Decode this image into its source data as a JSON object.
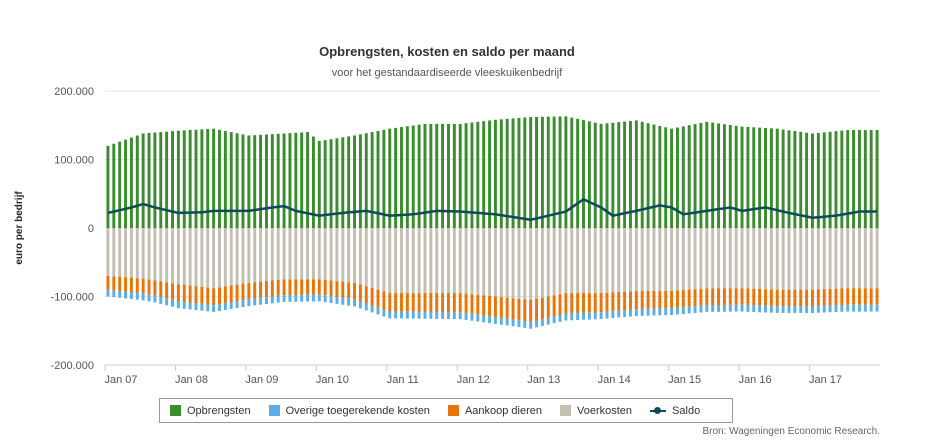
{
  "chart_data": {
    "type": "bar",
    "title": "Opbrengsten, kosten en saldo per maand",
    "subtitle": "voor het gestandaardiseerde vleeskuikenbedrijf",
    "ylabel": "euro per bedrijf",
    "ylim": [
      -200000,
      200000
    ],
    "yticks": [
      {
        "value": 200000,
        "label": "200.000"
      },
      {
        "value": 100000,
        "label": "100.000"
      },
      {
        "value": 0,
        "label": "0"
      },
      {
        "value": -100000,
        "label": "-100.000"
      },
      {
        "value": -200000,
        "label": "-200.000"
      }
    ],
    "xticks": [
      {
        "index": 0,
        "label": "Jan 07"
      },
      {
        "index": 12,
        "label": "Jan 08"
      },
      {
        "index": 24,
        "label": "Jan 09"
      },
      {
        "index": 36,
        "label": "Jan 10"
      },
      {
        "index": 48,
        "label": "Jan 11"
      },
      {
        "index": 60,
        "label": "Jan 12"
      },
      {
        "index": 72,
        "label": "Jan 13"
      },
      {
        "index": 84,
        "label": "Jan 14"
      },
      {
        "index": 96,
        "label": "Jan 15"
      },
      {
        "index": 108,
        "label": "Jan 16"
      },
      {
        "index": 120,
        "label": "Jan 17"
      }
    ],
    "period": {
      "first": "Jan 07",
      "last": "Dec 17",
      "months": 132
    },
    "grid": true,
    "legend_position": "bottom",
    "series": [
      {
        "name": "Opbrengsten",
        "color": "#3a8c2f",
        "keyframes": [
          [
            0,
            120000
          ],
          [
            6,
            138000
          ],
          [
            12,
            142000
          ],
          [
            18,
            145000
          ],
          [
            24,
            135000
          ],
          [
            30,
            138000
          ],
          [
            34,
            140000
          ],
          [
            36,
            127000
          ],
          [
            42,
            135000
          ],
          [
            48,
            145000
          ],
          [
            54,
            152000
          ],
          [
            60,
            152000
          ],
          [
            66,
            158000
          ],
          [
            72,
            162000
          ],
          [
            78,
            163000
          ],
          [
            84,
            152000
          ],
          [
            90,
            157000
          ],
          [
            96,
            145000
          ],
          [
            102,
            155000
          ],
          [
            108,
            148000
          ],
          [
            114,
            145000
          ],
          [
            120,
            138000
          ],
          [
            126,
            143000
          ],
          [
            131,
            143000
          ]
        ]
      },
      {
        "name": "Overige toegerekende kosten",
        "color": "#5aaee8",
        "keyframes": [
          [
            0,
            -10000
          ],
          [
            131,
            -10000
          ]
        ]
      },
      {
        "name": "Aankoop dieren",
        "color": "#e8750a",
        "keyframes": [
          [
            0,
            -20000
          ],
          [
            8,
            -22000
          ],
          [
            12,
            -25000
          ],
          [
            24,
            -24000
          ],
          [
            36,
            -22000
          ],
          [
            48,
            -27000
          ],
          [
            60,
            -28000
          ],
          [
            72,
            -32000
          ],
          [
            84,
            -28000
          ],
          [
            96,
            -25000
          ],
          [
            108,
            -24000
          ],
          [
            120,
            -24000
          ],
          [
            131,
            -24000
          ]
        ]
      },
      {
        "name": "Voerkosten",
        "color": "#c4bfb3",
        "keyframes": [
          [
            0,
            -70000
          ],
          [
            6,
            -74000
          ],
          [
            12,
            -82000
          ],
          [
            18,
            -88000
          ],
          [
            24,
            -80000
          ],
          [
            30,
            -75000
          ],
          [
            36,
            -75000
          ],
          [
            42,
            -80000
          ],
          [
            48,
            -95000
          ],
          [
            54,
            -95000
          ],
          [
            60,
            -95000
          ],
          [
            66,
            -100000
          ],
          [
            72,
            -105000
          ],
          [
            78,
            -95000
          ],
          [
            84,
            -95000
          ],
          [
            90,
            -92000
          ],
          [
            96,
            -92000
          ],
          [
            102,
            -88000
          ],
          [
            108,
            -88000
          ],
          [
            114,
            -90000
          ],
          [
            120,
            -90000
          ],
          [
            126,
            -88000
          ],
          [
            131,
            -88000
          ]
        ]
      },
      {
        "name": "Saldo",
        "color": "#0d4a5a",
        "type": "line",
        "keyframes": [
          [
            0,
            22000
          ],
          [
            4,
            30000
          ],
          [
            6,
            35000
          ],
          [
            8,
            30000
          ],
          [
            12,
            22000
          ],
          [
            16,
            23000
          ],
          [
            18,
            25000
          ],
          [
            24,
            25000
          ],
          [
            28,
            30000
          ],
          [
            30,
            32000
          ],
          [
            32,
            25000
          ],
          [
            36,
            18000
          ],
          [
            40,
            22000
          ],
          [
            44,
            25000
          ],
          [
            48,
            18000
          ],
          [
            52,
            20000
          ],
          [
            56,
            25000
          ],
          [
            60,
            24000
          ],
          [
            66,
            20000
          ],
          [
            72,
            12000
          ],
          [
            76,
            20000
          ],
          [
            78,
            24000
          ],
          [
            81,
            42000
          ],
          [
            84,
            30000
          ],
          [
            86,
            18000
          ],
          [
            90,
            25000
          ],
          [
            94,
            33000
          ],
          [
            96,
            30000
          ],
          [
            98,
            20000
          ],
          [
            102,
            25000
          ],
          [
            106,
            30000
          ],
          [
            108,
            25000
          ],
          [
            112,
            30000
          ],
          [
            116,
            22000
          ],
          [
            120,
            15000
          ],
          [
            124,
            18000
          ],
          [
            128,
            24000
          ],
          [
            131,
            24000
          ]
        ]
      }
    ]
  },
  "legend_items": [
    {
      "label": "Opbrengsten",
      "color": "#3a8c2f"
    },
    {
      "label": "Overige toegerekende kosten",
      "color": "#5aaee8"
    },
    {
      "label": "Aankoop dieren",
      "color": "#e8750a"
    },
    {
      "label": "Voerkosten",
      "color": "#c4bfb3"
    },
    {
      "label": "Saldo",
      "color": "#0d4a5a"
    }
  ],
  "source": "Bron: Wageningen Economic Research."
}
